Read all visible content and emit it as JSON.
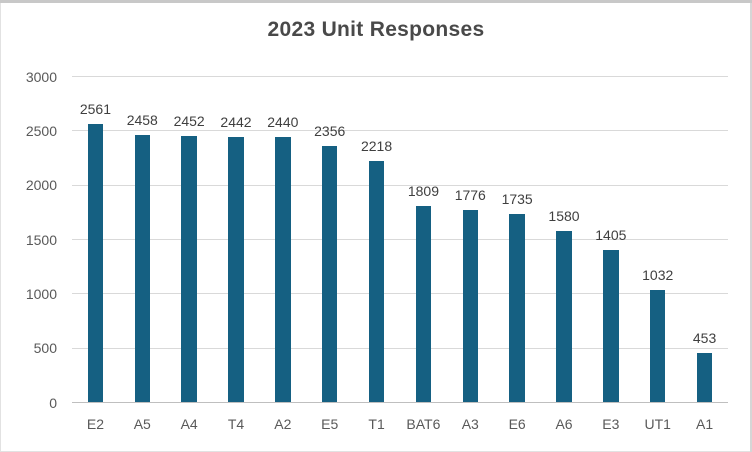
{
  "chart_data": {
    "type": "bar",
    "title": "2023 Unit Responses",
    "categories": [
      "E2",
      "A5",
      "A4",
      "T4",
      "A2",
      "E5",
      "T1",
      "BAT6",
      "A3",
      "E6",
      "A6",
      "E3",
      "UT1",
      "A1"
    ],
    "values": [
      2561,
      2458,
      2452,
      2442,
      2440,
      2356,
      2218,
      1809,
      1776,
      1735,
      1580,
      1405,
      1032,
      453
    ],
    "xlabel": "",
    "ylabel": "",
    "ylim": [
      0,
      3000
    ],
    "yticks": [
      0,
      500,
      1000,
      1500,
      2000,
      2500,
      3000
    ],
    "grid": true,
    "legend": false,
    "data_labels": true,
    "bar_color": "#156082"
  },
  "colors": {
    "bar": "#156082",
    "gridline": "#d9d9d9",
    "axis_line": "#bfbfbf",
    "title_text": "#494949",
    "tick_text": "#595959",
    "data_label_text": "#3f3f3f",
    "frame_border": "#e2e2e2",
    "frame_top_edge": "#c8c8c8",
    "background": "#ffffff"
  }
}
